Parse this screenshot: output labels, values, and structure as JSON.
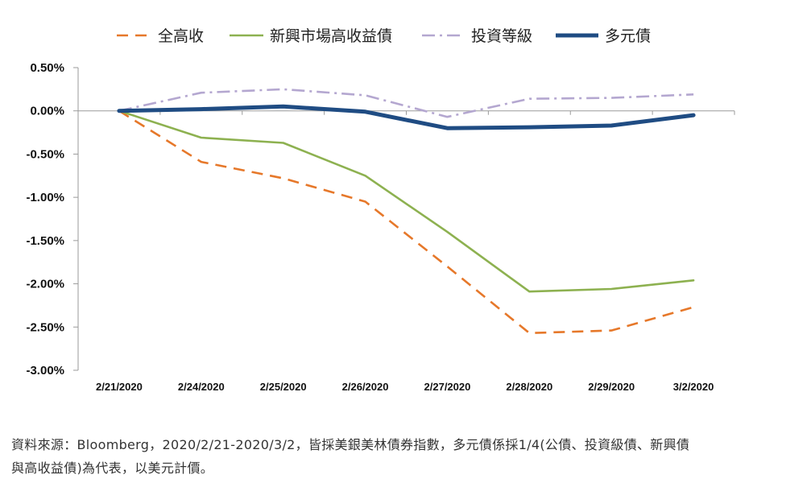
{
  "chart_data": {
    "type": "line",
    "categories": [
      "2/21/2020",
      "2/24/2020",
      "2/25/2020",
      "2/26/2020",
      "2/27/2020",
      "2/28/2020",
      "2/29/2020",
      "3/2/2020"
    ],
    "ylim": [
      -3.0,
      0.5
    ],
    "yticks": [
      "0.50%",
      "0.00%",
      "-0.50%",
      "-1.00%",
      "-1.50%",
      "-2.00%",
      "-2.50%",
      "-3.00%"
    ],
    "legend_position": "top",
    "grid": false,
    "series": [
      {
        "name": "全高收",
        "values": [
          0.0,
          -0.59,
          -0.78,
          -1.05,
          -1.8,
          -2.57,
          -2.54,
          -2.27
        ],
        "color": "#e6782a",
        "style": "dashed"
      },
      {
        "name": "新興市場高收益債",
        "values": [
          0.0,
          -0.31,
          -0.37,
          -0.75,
          -1.4,
          -2.09,
          -2.06,
          -1.96
        ],
        "color": "#8db150",
        "style": "solid"
      },
      {
        "name": "投資等級",
        "values": [
          0.0,
          0.21,
          0.25,
          0.18,
          -0.07,
          0.14,
          0.15,
          0.19
        ],
        "color": "#b4a7d0",
        "style": "dashdot"
      },
      {
        "name": "多元債",
        "values": [
          0.0,
          0.02,
          0.05,
          -0.01,
          -0.2,
          -0.19,
          -0.17,
          -0.05
        ],
        "color": "#1f4c83",
        "style": "thick"
      }
    ]
  },
  "footnote": {
    "line1": "資料來源：Bloomberg，2020/2/21-2020/3/2，皆採美銀美林債券指數，多元債係採1/4(公債、投資級債、新興債",
    "line2": "與高收益債)為代表，以美元計價。"
  }
}
